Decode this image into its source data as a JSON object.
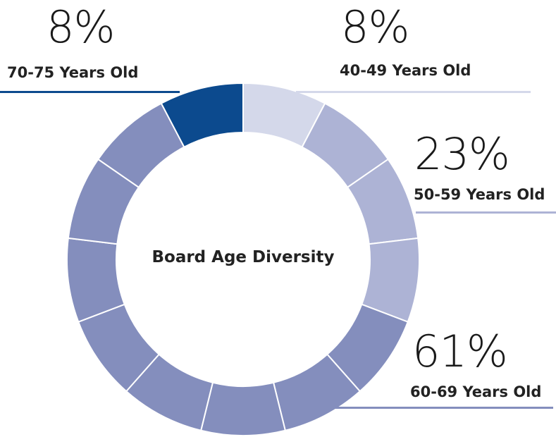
{
  "chart_data": {
    "type": "pie",
    "title": "Board Age Diversity",
    "segment_count": 13,
    "slices": [
      {
        "label": "40-49 Years Old",
        "value_label": "8%",
        "value": 8,
        "segments": 1,
        "color": "#d4d8ea"
      },
      {
        "label": "50-59 Years Old",
        "value_label": "23%",
        "value": 23,
        "segments": 3,
        "color": "#adb3d5"
      },
      {
        "label": "60-69 Years Old",
        "value_label": "61%",
        "value": 61,
        "segments": 8,
        "color": "#848ebd"
      },
      {
        "label": "70-75 Years Old",
        "value_label": "8%",
        "value": 8,
        "segments": 1,
        "color": "#0c4a8e"
      }
    ]
  }
}
